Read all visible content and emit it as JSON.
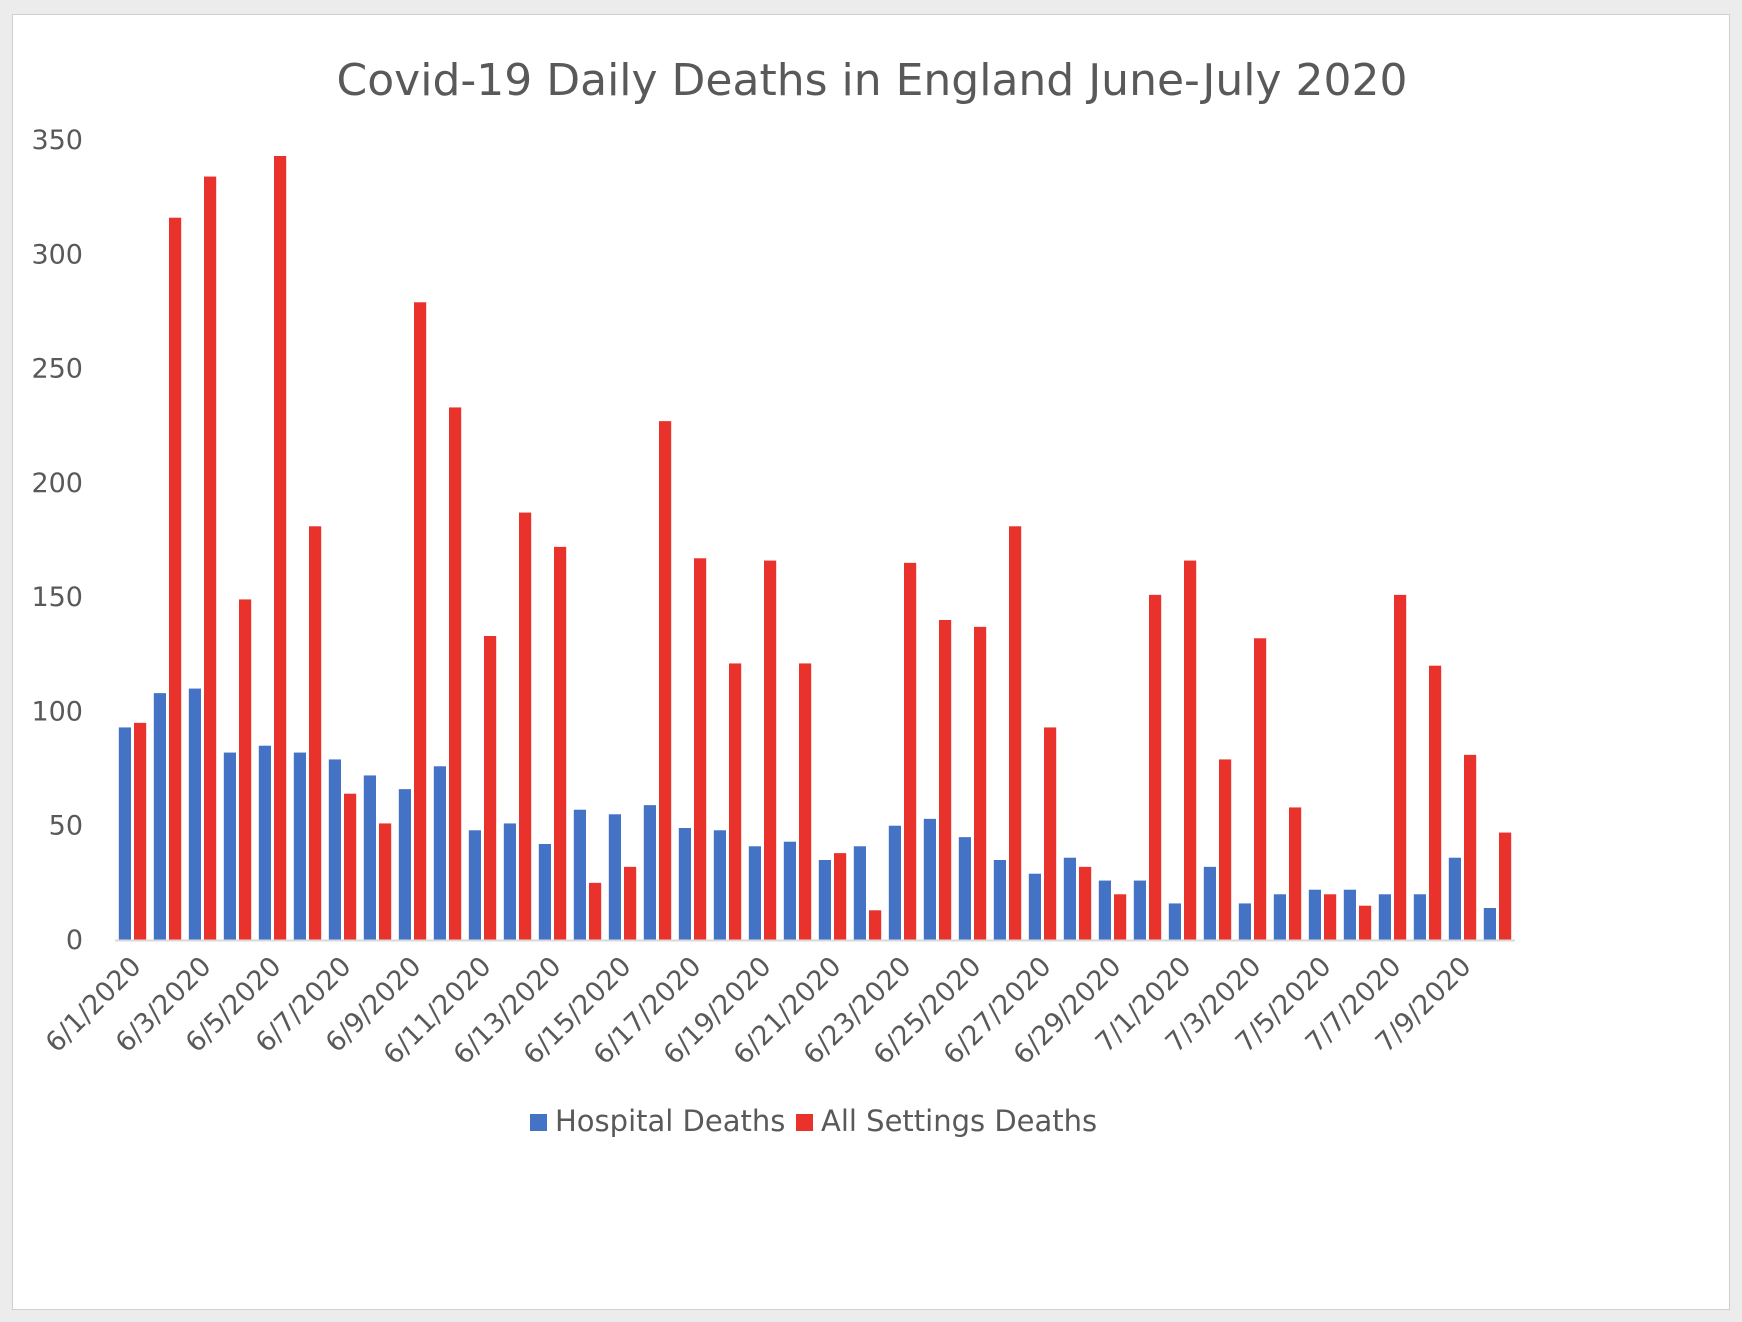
{
  "chart_data": {
    "type": "bar",
    "title": "Covid-19 Daily Deaths in England June-July 2020",
    "xlabel": "",
    "ylabel": "",
    "ylim": [
      0,
      350
    ],
    "yticks": [
      0,
      50,
      100,
      150,
      200,
      250,
      300,
      350
    ],
    "grid": false,
    "legend_position": "bottom",
    "categories": [
      "6/1/2020",
      "6/2/2020",
      "6/3/2020",
      "6/4/2020",
      "6/5/2020",
      "6/6/2020",
      "6/7/2020",
      "6/8/2020",
      "6/9/2020",
      "6/10/2020",
      "6/11/2020",
      "6/12/2020",
      "6/13/2020",
      "6/14/2020",
      "6/15/2020",
      "6/16/2020",
      "6/17/2020",
      "6/18/2020",
      "6/19/2020",
      "6/20/2020",
      "6/21/2020",
      "6/22/2020",
      "6/23/2020",
      "6/24/2020",
      "6/25/2020",
      "6/26/2020",
      "6/27/2020",
      "6/28/2020",
      "6/29/2020",
      "6/30/2020",
      "7/1/2020",
      "7/2/2020",
      "7/3/2020",
      "7/4/2020",
      "7/5/2020",
      "7/6/2020",
      "7/7/2020",
      "7/8/2020",
      "7/9/2020",
      "7/10/2020"
    ],
    "xtick_labels": [
      "6/1/2020",
      "6/3/2020",
      "6/5/2020",
      "6/7/2020",
      "6/9/2020",
      "6/11/2020",
      "6/13/2020",
      "6/15/2020",
      "6/17/2020",
      "6/19/2020",
      "6/21/2020",
      "6/23/2020",
      "6/25/2020",
      "6/27/2020",
      "6/29/2020",
      "7/1/2020",
      "7/3/2020",
      "7/5/2020",
      "7/7/2020",
      "7/9/2020"
    ],
    "series": [
      {
        "name": "Hospital Deaths",
        "color": "#4472c4",
        "values": [
          93,
          108,
          110,
          82,
          85,
          82,
          79,
          72,
          66,
          76,
          48,
          51,
          42,
          57,
          55,
          59,
          49,
          48,
          41,
          43,
          35,
          41,
          50,
          53,
          45,
          35,
          29,
          36,
          26,
          26,
          16,
          32,
          16,
          20,
          22,
          22,
          20,
          20,
          36,
          14
        ]
      },
      {
        "name": "All Settings Deaths",
        "color": "#e8322b",
        "values": [
          95,
          316,
          334,
          149,
          343,
          181,
          64,
          51,
          279,
          233,
          133,
          187,
          172,
          25,
          32,
          227,
          167,
          121,
          166,
          121,
          38,
          13,
          165,
          140,
          137,
          181,
          93,
          32,
          20,
          151,
          166,
          79,
          132,
          58,
          20,
          15,
          151,
          120,
          81,
          47
        ]
      }
    ]
  }
}
